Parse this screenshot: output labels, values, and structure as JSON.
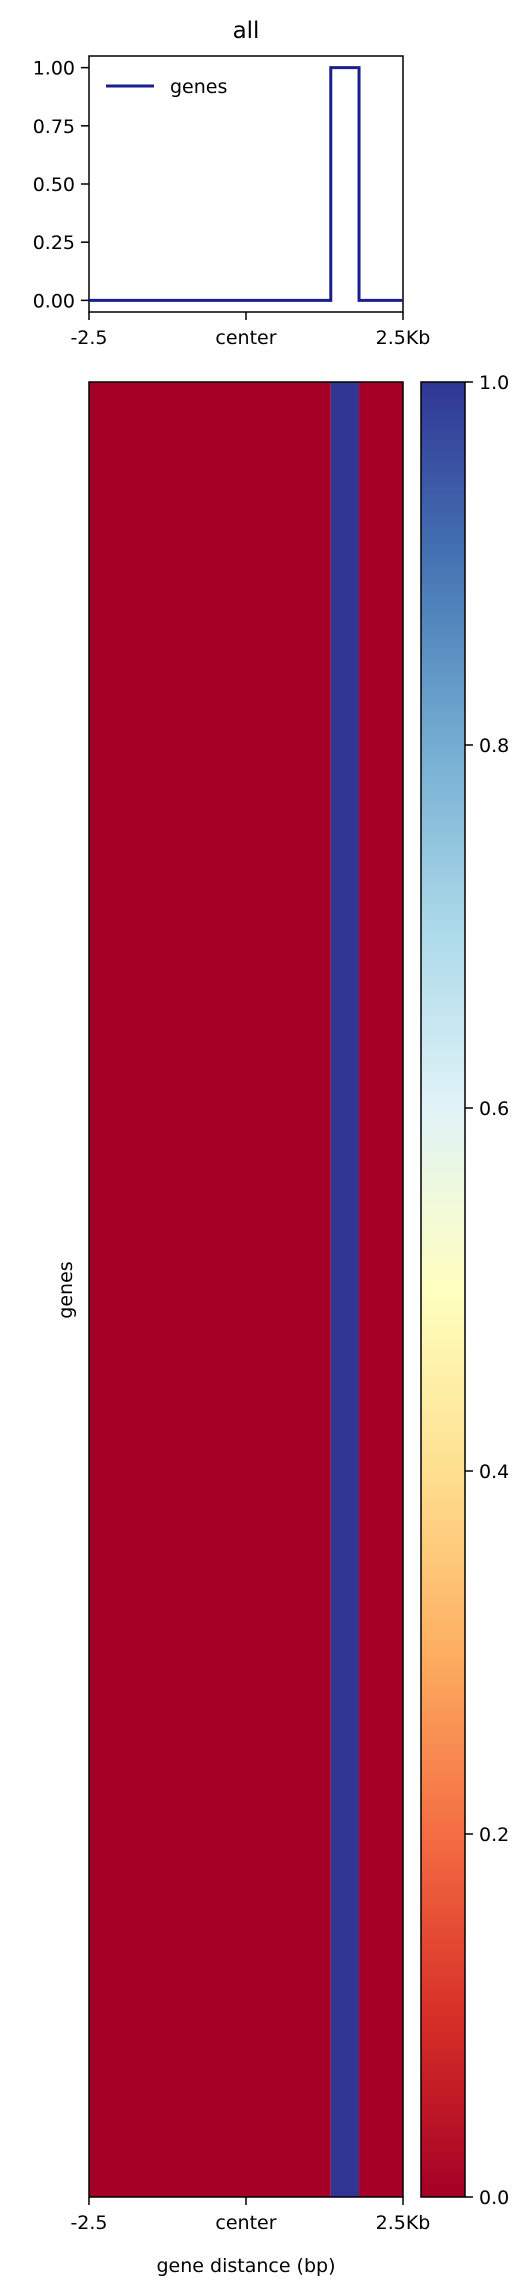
{
  "chart_data": [
    {
      "type": "line",
      "title": "all",
      "xlabel": "",
      "ylabel": "",
      "x_tick_labels": [
        "-2.5",
        "center",
        "2.5Kb"
      ],
      "x_range": [
        -2.5,
        2.5
      ],
      "y_tick_labels": [
        "0.00",
        "0.25",
        "0.50",
        "0.75",
        "1.00"
      ],
      "y_ticks": [
        0,
        0.25,
        0.5,
        0.75,
        1.0
      ],
      "ylim": [
        -0.05,
        1.05
      ],
      "legend_position": "top-left",
      "grid": false,
      "series": [
        {
          "name": "genes",
          "color": "#1a1f8c",
          "x": [
            -2.5,
            1.35,
            1.35,
            1.8,
            1.8,
            2.5
          ],
          "y": [
            0,
            0,
            1,
            1,
            0,
            0
          ]
        }
      ]
    },
    {
      "type": "heatmap",
      "xlabel": "gene distance (bp)",
      "ylabel": "genes",
      "x_tick_labels": [
        "-2.5",
        "center",
        "2.5Kb"
      ],
      "x_range": [
        -2.5,
        2.5
      ],
      "bins": [
        {
          "x_start": -2.5,
          "x_end": 1.35,
          "value": 0
        },
        {
          "x_start": 1.35,
          "x_end": 1.8,
          "value": 1
        },
        {
          "x_start": 1.8,
          "x_end": 2.5,
          "value": 0
        }
      ],
      "colormap": "RdYlBu",
      "colormap_stops": [
        "#a50026",
        "#d73027",
        "#f46d43",
        "#fdae61",
        "#fee090",
        "#ffffbf",
        "#e0f3f8",
        "#abd9e9",
        "#74add1",
        "#4575b4",
        "#313695"
      ],
      "colorbar_ticks": [
        0.0,
        0.2,
        0.4,
        0.6,
        0.8,
        1.0
      ],
      "colorbar_tick_labels": [
        "0.0",
        "0.2",
        "0.4",
        "0.6",
        "0.8",
        "1.0"
      ],
      "vmin": 0,
      "vmax": 1
    }
  ]
}
